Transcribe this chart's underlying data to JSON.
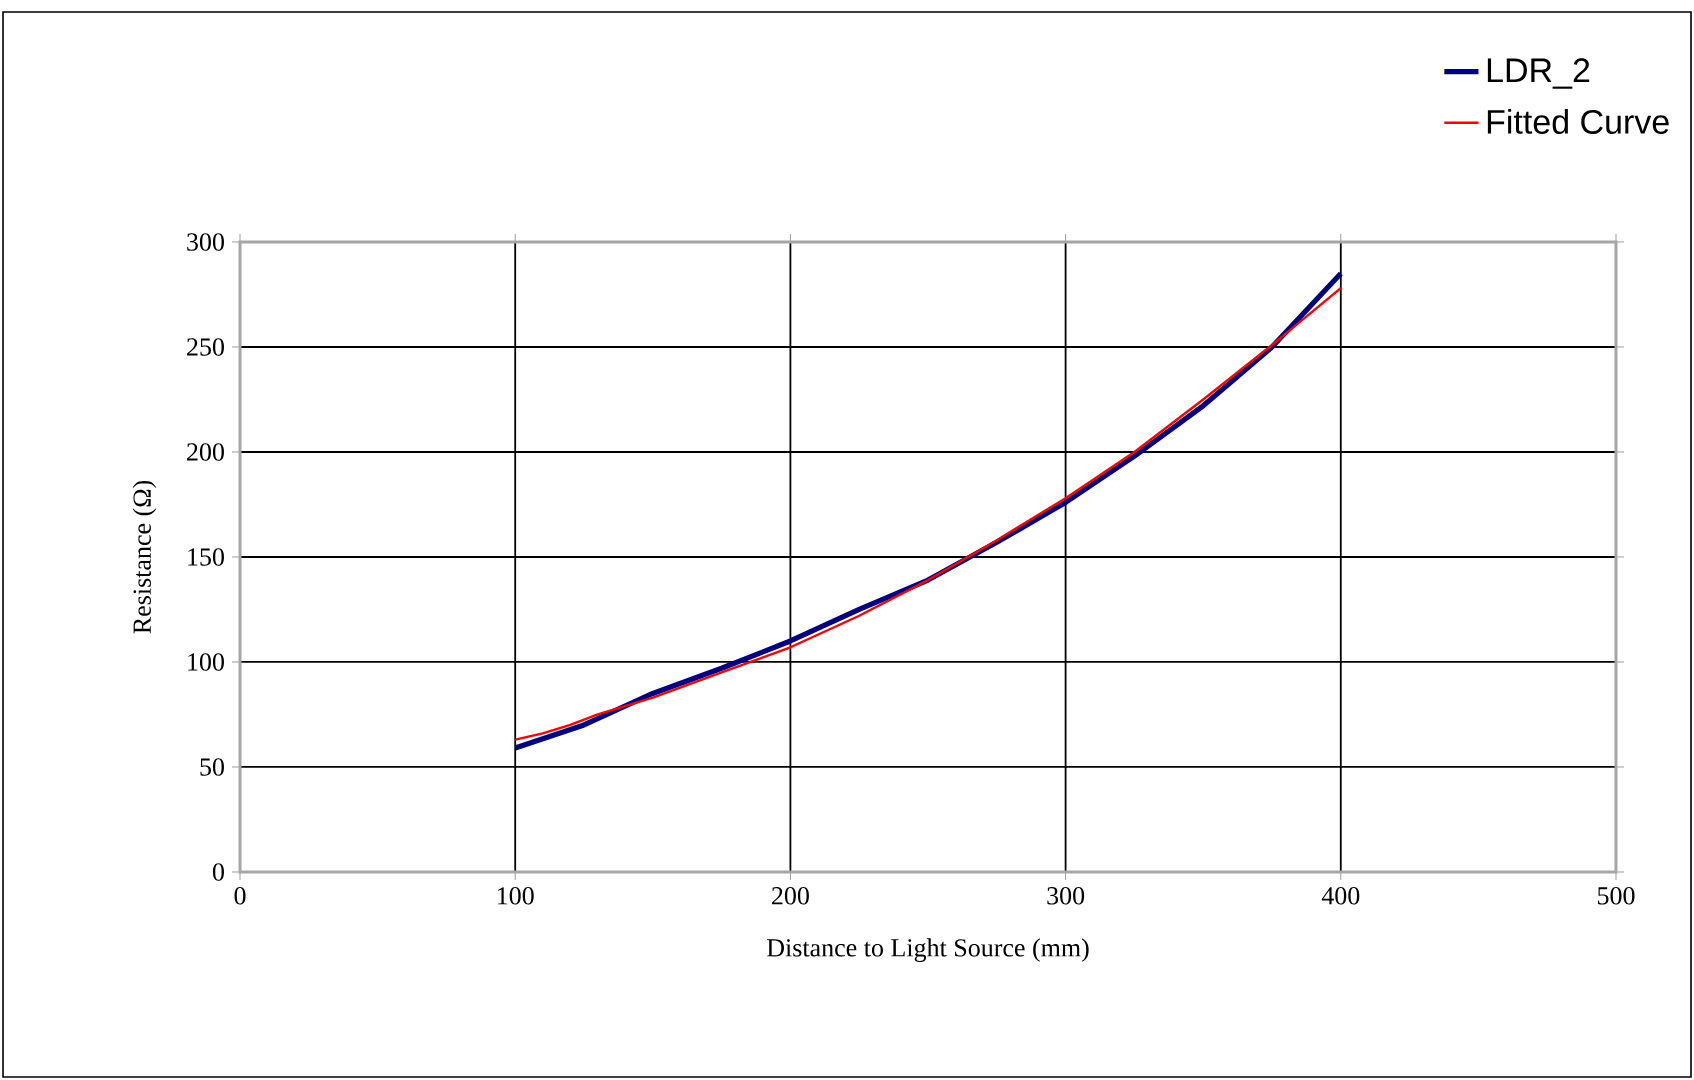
{
  "chart_data": {
    "type": "line",
    "xlabel": "Distance to Light Source (mm)",
    "ylabel": "Resistance (Ω)",
    "xlim": [
      0,
      500
    ],
    "xticks": [
      0,
      100,
      200,
      300,
      400,
      500
    ],
    "ylim": [
      0,
      300
    ],
    "yticks": [
      0,
      50,
      100,
      150,
      200,
      250,
      300
    ],
    "grid": true,
    "legend": "top right",
    "marker": "none",
    "line_style": "solid",
    "series": [
      {
        "name": "LDR_2",
        "color": "#000080",
        "x": [
          100,
          125,
          150,
          175,
          200,
          225,
          250,
          275,
          300,
          325,
          350,
          375,
          400
        ],
        "values": [
          59,
          70,
          85,
          97,
          110,
          125,
          139,
          157,
          176,
          198,
          222,
          250,
          285
        ]
      },
      {
        "name": "Fitted Curve",
        "color": "#ff0000",
        "x": [
          100,
          110,
          120,
          130,
          150,
          175,
          200,
          225,
          250,
          275,
          300,
          325,
          350,
          375,
          400
        ],
        "values": [
          63,
          66,
          70,
          75,
          83,
          95,
          107,
          122,
          139,
          158,
          178,
          200,
          225,
          251,
          278
        ]
      }
    ]
  }
}
